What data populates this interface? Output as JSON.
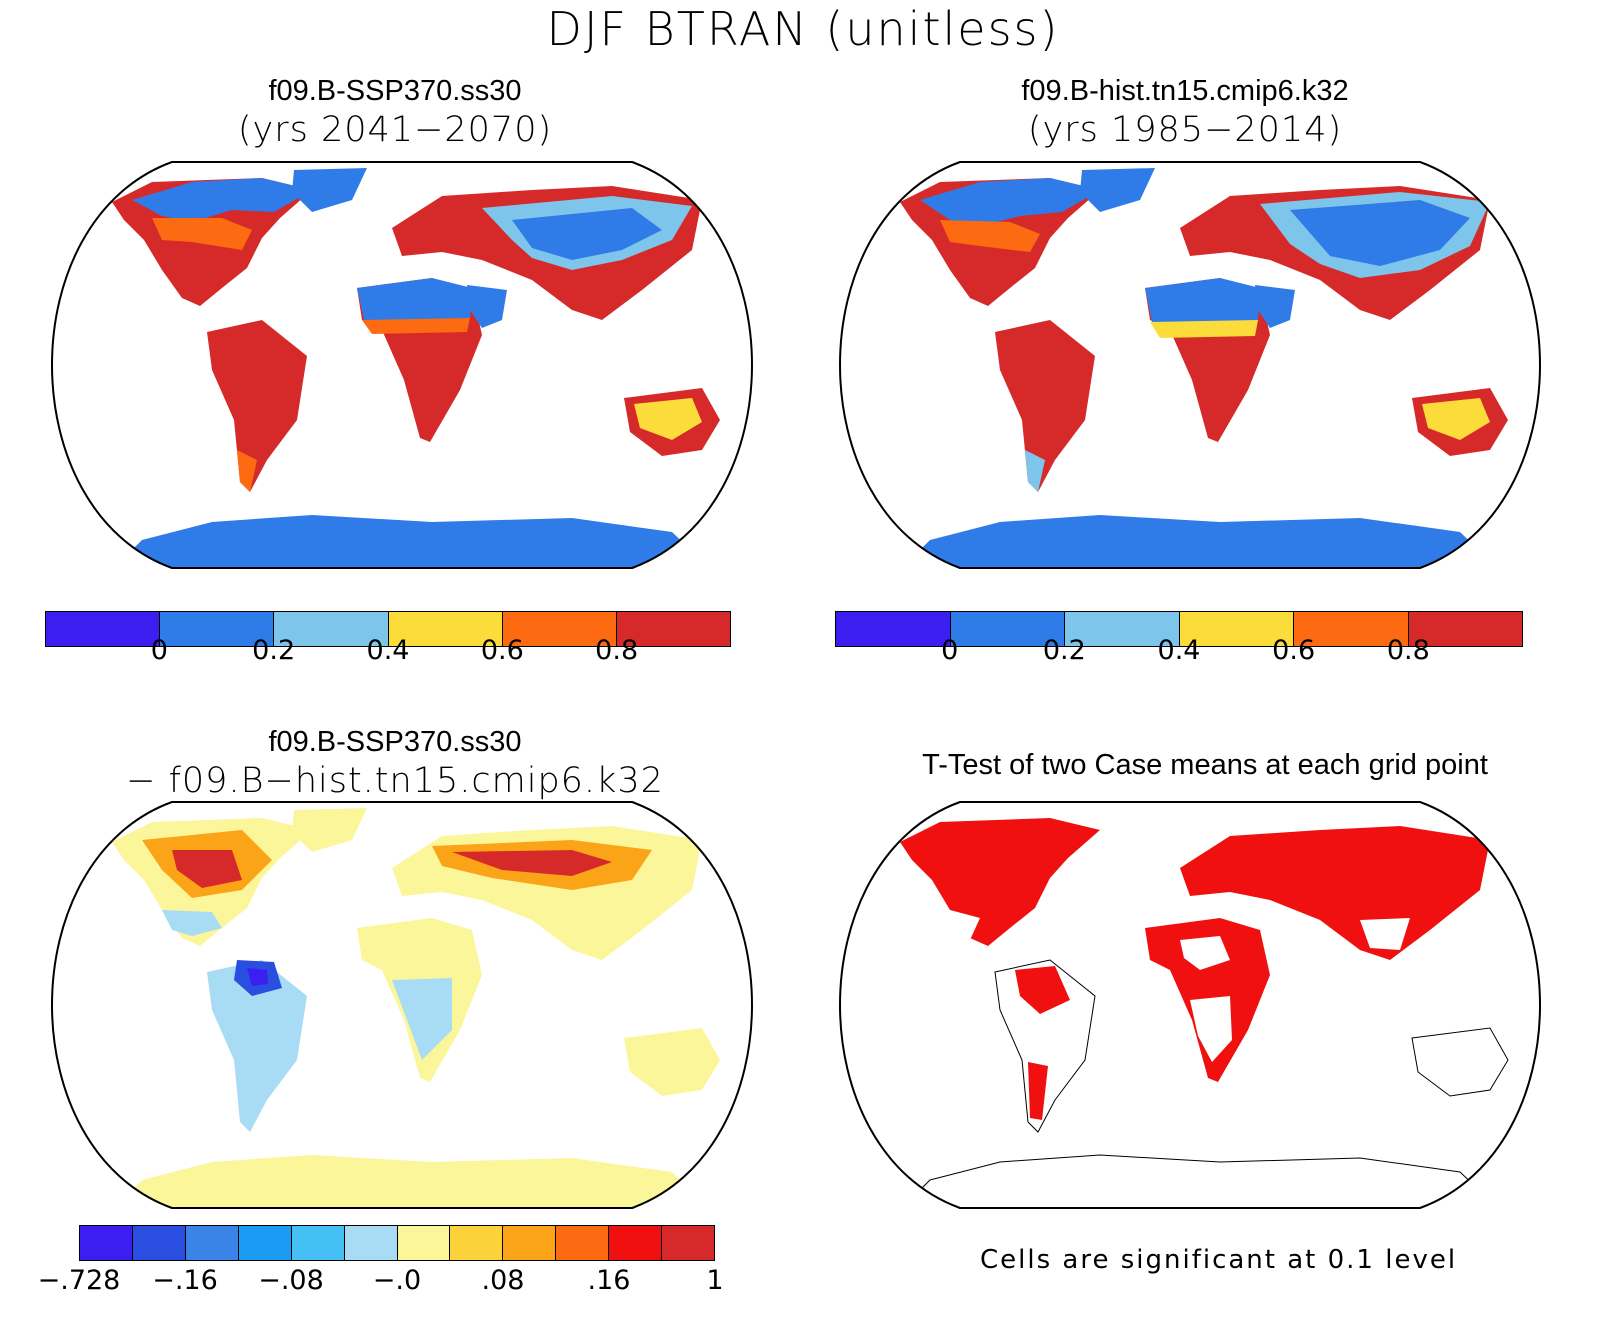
{
  "title": "DJF BTRAN (unitless)",
  "panels": [
    {
      "title": "f09.B-SSP370.ss30",
      "subtitle": "(yrs 2041−2070)"
    },
    {
      "title": "f09.B-hist.tn15.cmip6.k32",
      "subtitle": "(yrs 1985−2014)"
    },
    {
      "title": "f09.B-SSP370.ss30",
      "subtitle": "− f09.B−hist.tn15.cmip6.k32"
    },
    {
      "title": "T-Test of two Case means at each grid point",
      "subtitle": ""
    }
  ],
  "colorbar_main": {
    "colors": [
      "#3d1ef0",
      "#2f7be8",
      "#7ec5ec",
      "#fcdc3a",
      "#fc6a12",
      "#d62a2a"
    ],
    "ticks": [
      "0",
      "0.2",
      "0.4",
      "0.6",
      "0.8"
    ]
  },
  "colorbar_diff": {
    "colors": [
      "#3d1ef0",
      "#2a4fe0",
      "#3a84e8",
      "#1a9cf4",
      "#44c0f4",
      "#a8dcf4",
      "#fcf69a",
      "#fcd23a",
      "#fca418",
      "#fc6a12",
      "#f01010",
      "#d62a2a"
    ],
    "ticks": [
      "−.728",
      "−.16",
      "−.08",
      "−.0",
      ".08",
      ".16",
      "1"
    ]
  },
  "ttest_note": "Cells are significant at 0.1 level",
  "colors": {
    "land_wet": "#d62a2a",
    "land_dry": "#2f7be8",
    "diff_pos": "#fcf69a",
    "ttest_sig": "#f01010"
  }
}
